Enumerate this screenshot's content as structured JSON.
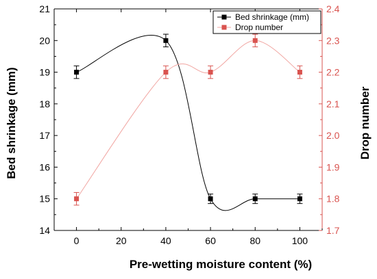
{
  "chart_data": {
    "type": "line",
    "xlabel": "Pre-wetting moisture content (%)",
    "ylabel_left": "Bed shrinkage (mm)",
    "ylabel_right": "Drop number",
    "x": [
      0,
      20,
      40,
      60,
      80,
      100
    ],
    "xticks": [
      "0",
      "20",
      "40",
      "60",
      "80",
      "100"
    ],
    "xlim": [
      -10,
      110
    ],
    "ylim_left": [
      14,
      21
    ],
    "ylim_right": [
      1.7,
      2.4
    ],
    "yticks_left": [
      "14",
      "15",
      "16",
      "17",
      "18",
      "19",
      "20",
      "21"
    ],
    "yticks_right": [
      "1.7",
      "1.8",
      "1.9",
      "2.0",
      "2.1",
      "2.2",
      "2.3",
      "2.4"
    ],
    "legend_position": "top-right",
    "grid": false,
    "series": [
      {
        "name": "Bed shrinkage (mm)",
        "axis": "left",
        "color": "#000000",
        "x": [
          0,
          40,
          60,
          80,
          100
        ],
        "values": [
          19.0,
          20.0,
          15.0,
          15.0,
          15.0
        ],
        "error": [
          0.2,
          0.2,
          0.15,
          0.15,
          0.15
        ]
      },
      {
        "name": "Drop number",
        "axis": "right",
        "color": "#d9534f",
        "x": [
          0,
          40,
          60,
          80,
          100
        ],
        "values": [
          1.8,
          2.2,
          2.2,
          2.3,
          2.2
        ],
        "error": [
          0.02,
          0.02,
          0.02,
          0.02,
          0.02
        ]
      }
    ]
  }
}
